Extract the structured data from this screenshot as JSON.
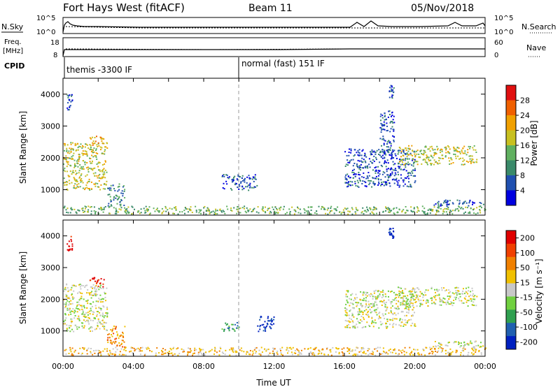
{
  "header": {
    "title": "Fort Hays West (fitACF)",
    "beam": "Beam 11",
    "date": "05/Nov/2018"
  },
  "top_panels": {
    "nsky": {
      "left_label": "N.Sky",
      "right_label": "N.Search",
      "ticks_left": [
        "10^5",
        "10^0"
      ],
      "ticks_right": [
        "10^5",
        "10^0"
      ]
    },
    "freq": {
      "left_label": "Freq.",
      "left_unit": "[MHz]",
      "right_label": "Nave",
      "ticks_left": [
        "18",
        "8"
      ],
      "ticks_right": [
        "60",
        "0"
      ]
    },
    "cpid": {
      "label": "CPID",
      "mode1": "themis -3300 IF",
      "mode2": "normal (fast) 151 IF"
    }
  },
  "chart_data": [
    {
      "type": "heatmap",
      "name": "power",
      "ylabel": "Slant Range [km]",
      "xlabel": "",
      "yticks": [
        "1000",
        "2000",
        "3000",
        "4000"
      ],
      "xlim_hours": [
        0,
        24
      ],
      "ylim_km": [
        200,
        4500
      ],
      "colorbar_label": "Power [dB]",
      "colorbar_ticks": [
        "4",
        "8",
        "12",
        "16",
        "20",
        "24",
        "28"
      ],
      "colorbar_colors": [
        "#0000e0",
        "#2050b0",
        "#3a8a6a",
        "#60b060",
        "#c8c020",
        "#f0a000",
        "#f06000",
        "#e01010"
      ],
      "echo_regions": [
        {
          "t": [
            0.0,
            2.5
          ],
          "r": [
            1000,
            2500
          ],
          "level": 4
        },
        {
          "t": [
            1.5,
            2.3
          ],
          "r": [
            2400,
            2700
          ],
          "level": 5
        },
        {
          "t": [
            2.5,
            3.5
          ],
          "r": [
            500,
            1200
          ],
          "level": 2
        },
        {
          "t": [
            0.2,
            0.5
          ],
          "r": [
            3500,
            4000
          ],
          "level": 1
        },
        {
          "t": [
            0.0,
            24.0
          ],
          "r": [
            250,
            500
          ],
          "level": 3
        },
        {
          "t": [
            9.0,
            11.0
          ],
          "r": [
            1000,
            1500
          ],
          "level": 1
        },
        {
          "t": [
            16.0,
            20.0
          ],
          "r": [
            1100,
            2300
          ],
          "level": 1
        },
        {
          "t": [
            19.0,
            23.5
          ],
          "r": [
            1800,
            2400
          ],
          "level": 4
        },
        {
          "t": [
            18.0,
            18.8
          ],
          "r": [
            2000,
            3500
          ],
          "level": 1
        },
        {
          "t": [
            18.5,
            18.8
          ],
          "r": [
            3900,
            4300
          ],
          "level": 1
        },
        {
          "t": [
            21.0,
            24.0
          ],
          "r": [
            500,
            700
          ],
          "level": 1
        }
      ]
    },
    {
      "type": "heatmap",
      "name": "velocity",
      "ylabel": "Slant Range [km]",
      "xlabel": "Time UT",
      "yticks": [
        "1000",
        "2000",
        "3000",
        "4000"
      ],
      "xticks": [
        "00:00",
        "04:00",
        "08:00",
        "12:00",
        "16:00",
        "20:00",
        "00:00"
      ],
      "xlim_hours": [
        0,
        24
      ],
      "ylim_km": [
        200,
        4500
      ],
      "colorbar_label": "Velocity [m s⁻¹]",
      "colorbar_ticks": [
        "200",
        "100",
        "50",
        "15",
        "-15",
        "-50",
        "-100",
        "-200"
      ],
      "colorbar_colors": [
        "#0020c0",
        "#2060b0",
        "#30a050",
        "#70d040",
        "#c8c8c8",
        "#f0c000",
        "#f08000",
        "#f04000",
        "#e00000"
      ],
      "echo_regions": [
        {
          "t": [
            0.0,
            2.5
          ],
          "r": [
            1000,
            2500
          ],
          "level": 4
        },
        {
          "t": [
            1.5,
            2.3
          ],
          "r": [
            2400,
            2700
          ],
          "level": 8
        },
        {
          "t": [
            2.5,
            3.5
          ],
          "r": [
            500,
            1200
          ],
          "level": 6
        },
        {
          "t": [
            0.2,
            0.5
          ],
          "r": [
            3500,
            4000
          ],
          "level": 8
        },
        {
          "t": [
            0.0,
            24.0
          ],
          "r": [
            250,
            500
          ],
          "level": 5
        },
        {
          "t": [
            9.0,
            10.0
          ],
          "r": [
            1000,
            1300
          ],
          "level": 2
        },
        {
          "t": [
            11.0,
            12.0
          ],
          "r": [
            1000,
            1500
          ],
          "level": 0
        },
        {
          "t": [
            16.0,
            20.0
          ],
          "r": [
            1100,
            2300
          ],
          "level": 4
        },
        {
          "t": [
            19.0,
            23.5
          ],
          "r": [
            1800,
            2400
          ],
          "level": 4
        },
        {
          "t": [
            18.5,
            18.8
          ],
          "r": [
            3900,
            4300
          ],
          "level": 0
        },
        {
          "t": [
            21.0,
            24.0
          ],
          "r": [
            500,
            700
          ],
          "level": 4
        }
      ]
    }
  ]
}
